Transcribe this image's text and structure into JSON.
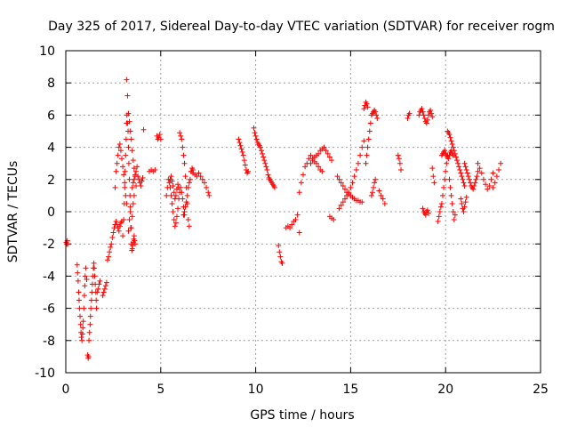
{
  "chart_data": {
    "type": "scatter",
    "title": "Day 325 of 2017, Sidereal Day-to-day VTEC variation (SDTVAR) for receiver rogm",
    "xlabel": "GPS time / hours",
    "ylabel": "SDTVAR / TECUs",
    "xlim": [
      0,
      25
    ],
    "ylim": [
      -10,
      10
    ],
    "xticks": [
      0,
      5,
      10,
      15,
      20,
      25
    ],
    "yticks": [
      -10,
      -8,
      -6,
      -4,
      -2,
      0,
      2,
      4,
      6,
      8,
      10
    ],
    "xtick_labels": [
      "0",
      "5",
      "10",
      "15",
      "20",
      "25"
    ],
    "ytick_labels": [
      "-10",
      "-8",
      "-6",
      "-4",
      "-2",
      "0",
      "2",
      "4",
      "6",
      "8",
      "10"
    ],
    "grid": true,
    "marker": "+",
    "marker_color": "#ff0000",
    "series": [
      {
        "name": "SDTVAR",
        "x": [
          0.02,
          0.05,
          0.08,
          0.1,
          0.6,
          0.62,
          0.65,
          0.68,
          0.7,
          0.72,
          0.75,
          0.78,
          0.8,
          0.82,
          0.85,
          0.88,
          0.9,
          0.92,
          0.95,
          0.98,
          1.0,
          1.02,
          1.05,
          1.1,
          1.15,
          1.18,
          1.2,
          1.22,
          1.25,
          1.28,
          1.3,
          1.32,
          1.35,
          1.38,
          1.4,
          1.42,
          1.45,
          1.48,
          1.5,
          1.52,
          1.55,
          1.58,
          1.6,
          1.62,
          1.65,
          1.7,
          1.75,
          1.8,
          1.95,
          2.0,
          2.05,
          2.1,
          2.15,
          2.2,
          2.25,
          2.3,
          2.35,
          2.4,
          2.45,
          2.5,
          2.55,
          2.6,
          2.65,
          2.7,
          2.75,
          2.8,
          2.85,
          2.9,
          2.95,
          2.6,
          2.65,
          2.7,
          2.75,
          2.8,
          2.85,
          2.9,
          2.95,
          3.0,
          3.05,
          3.1,
          3.15,
          3.2,
          3.0,
          3.05,
          3.08,
          3.1,
          3.12,
          3.15,
          3.18,
          3.2,
          3.22,
          3.25,
          3.28,
          3.3,
          3.32,
          3.35,
          3.38,
          3.4,
          3.42,
          3.45,
          3.48,
          3.5,
          3.52,
          3.55,
          3.58,
          3.6,
          3.62,
          3.65,
          3.2,
          3.25,
          3.3,
          3.35,
          3.4,
          3.45,
          3.5,
          3.55,
          3.6,
          3.65,
          3.7,
          3.5,
          3.55,
          3.6,
          3.65,
          3.7,
          3.75,
          3.8,
          3.85,
          3.9,
          3.95,
          4.0,
          4.05,
          4.1,
          3.3,
          3.35,
          3.4,
          3.45,
          3.5,
          3.55,
          3.6,
          4.4,
          4.5,
          4.6,
          4.7,
          4.8,
          4.85,
          4.9,
          4.95,
          5.0,
          5.3,
          5.35,
          5.4,
          5.45,
          5.5,
          5.55,
          5.6,
          5.65,
          5.7,
          5.75,
          5.8,
          5.85,
          5.9,
          5.95,
          6.0,
          6.05,
          6.1,
          6.15,
          6.2,
          6.25,
          5.5,
          5.55,
          5.6,
          5.65,
          5.7,
          5.75,
          5.8,
          5.85,
          5.9,
          5.95,
          6.0,
          6.05,
          6.1,
          6.15,
          6.2,
          6.25,
          6.3,
          6.35,
          6.4,
          6.45,
          6.5,
          6.2,
          6.25,
          6.3,
          6.35,
          6.4,
          6.45,
          6.5,
          6.55,
          6.6,
          6.65,
          6.7,
          6.6,
          6.7,
          6.8,
          6.9,
          7.0,
          7.1,
          7.2,
          7.3,
          7.4,
          7.5,
          7.55,
          9.1,
          9.15,
          9.2,
          9.25,
          9.3,
          9.35,
          9.4,
          9.45,
          9.5,
          9.55,
          9.6,
          9.9,
          9.95,
          10.0,
          10.05,
          10.1,
          10.15,
          10.2,
          10.25,
          10.3,
          10.35,
          10.4,
          10.45,
          10.5,
          10.55,
          10.6,
          10.65,
          10.7,
          10.75,
          10.8,
          10.85,
          10.9,
          10.95,
          11.0,
          11.2,
          11.25,
          11.3,
          11.35,
          11.4,
          11.6,
          11.7,
          11.8,
          11.9,
          12.0,
          12.1,
          12.2,
          12.3,
          12.3,
          12.4,
          12.5,
          12.6,
          12.7,
          12.8,
          12.9,
          13.0,
          13.1,
          13.2,
          13.3,
          13.4,
          13.5,
          13.6,
          13.7,
          13.8,
          13.9,
          14.0,
          12.9,
          13.0,
          13.1,
          13.2,
          13.3,
          13.4,
          13.5,
          13.9,
          14.0,
          14.1,
          14.3,
          14.4,
          14.5,
          14.6,
          14.7,
          14.8,
          14.9,
          15.0,
          15.1,
          15.2,
          15.3,
          15.4,
          15.5,
          15.6,
          14.4,
          14.5,
          14.6,
          14.7,
          14.8,
          14.9,
          15.0,
          15.1,
          15.2,
          15.3,
          15.4,
          15.5,
          15.6,
          15.7,
          15.7,
          15.75,
          15.8,
          15.85,
          15.9,
          15.8,
          15.85,
          15.9,
          15.95,
          16.0,
          16.05,
          16.1,
          16.15,
          16.2,
          16.25,
          16.3,
          16.35,
          16.4,
          16.1,
          16.15,
          16.2,
          16.25,
          16.3,
          16.5,
          16.6,
          16.7,
          16.8,
          17.5,
          17.55,
          17.6,
          17.65,
          18.0,
          18.05,
          18.1,
          18.6,
          18.65,
          18.7,
          18.75,
          18.8,
          18.85,
          18.9,
          18.95,
          19.0,
          19.05,
          19.1,
          19.15,
          19.2,
          19.25,
          19.3,
          18.8,
          18.85,
          18.9,
          18.95,
          19.0,
          19.05,
          19.1,
          19.3,
          19.35,
          19.4,
          19.6,
          19.65,
          19.7,
          19.75,
          19.8,
          19.85,
          19.9,
          19.95,
          20.0,
          20.05,
          20.1,
          19.8,
          19.85,
          19.9,
          19.95,
          20.0,
          20.05,
          20.1,
          20.15,
          20.2,
          20.25,
          20.3,
          20.35,
          20.4,
          20.1,
          20.15,
          20.2,
          20.25,
          20.3,
          20.35,
          20.4,
          20.45,
          20.5,
          20.55,
          20.6,
          20.65,
          20.7,
          20.75,
          20.8,
          20.85,
          20.9,
          20.95,
          21.0,
          20.2,
          20.25,
          20.3,
          20.35,
          20.4,
          20.45,
          20.5,
          20.8,
          20.85,
          20.9,
          20.95,
          21.0,
          21.05,
          21.1,
          21.0,
          21.05,
          21.1,
          21.15,
          21.2,
          21.25,
          21.3,
          21.35,
          21.4,
          21.45,
          21.5,
          21.55,
          21.6,
          21.65,
          21.7,
          21.7,
          21.8,
          21.9,
          22.0,
          22.1,
          22.2,
          22.3,
          22.4,
          22.5,
          22.5,
          22.6,
          22.7,
          22.8,
          22.9
        ],
        "y": [
          -1.9,
          -2.0,
          -1.8,
          -2.0,
          -3.3,
          -3.8,
          -4.3,
          -5.0,
          -5.5,
          -6.0,
          -6.5,
          -7.0,
          -7.5,
          -7.8,
          -8.0,
          -7.6,
          -7.2,
          -6.8,
          -6.0,
          -5.2,
          -4.6,
          -4.0,
          -3.5,
          -4.2,
          -8.9,
          -9.1,
          -9.0,
          -8.0,
          -7.5,
          -7.0,
          -6.5,
          -6.0,
          -5.5,
          -5.0,
          -4.5,
          -4.0,
          -3.5,
          -3.2,
          -3.5,
          -4.0,
          -4.5,
          -5.0,
          -5.5,
          -6.0,
          -5.0,
          -4.8,
          -4.5,
          -4.3,
          -5.2,
          -5.0,
          -4.8,
          -4.6,
          -4.4,
          -3.0,
          -2.8,
          -2.5,
          -2.2,
          -2.0,
          -1.6,
          -1.3,
          -1.0,
          -0.8,
          -0.6,
          -0.8,
          -1.0,
          -1.2,
          -0.9,
          -0.7,
          -0.6,
          1.5,
          2.5,
          3.0,
          3.5,
          4.0,
          4.2,
          3.8,
          3.3,
          2.8,
          2.3,
          1.8,
          1.0,
          0.5,
          -1.5,
          -0.5,
          0.5,
          1.5,
          2.5,
          3.5,
          4.5,
          5.5,
          6.0,
          5.5,
          5.0,
          4.0,
          3.0,
          2.0,
          1.0,
          0.0,
          -1.0,
          -2.0,
          -2.4,
          -2.3,
          -2.1,
          -1.9,
          -1.7,
          -1.5,
          -1.8,
          -2.0,
          8.2,
          7.2,
          6.1,
          5.6,
          5.0,
          4.5,
          3.8,
          3.2,
          2.7,
          2.2,
          1.6,
          1.5,
          1.8,
          2.0,
          2.3,
          2.5,
          2.8,
          2.2,
          2.0,
          1.8,
          1.6,
          1.9,
          2.1,
          5.1,
          -1.2,
          -0.5,
          0.3,
          -1.0,
          -0.3,
          0.5,
          1.0,
          2.5,
          2.6,
          2.5,
          2.6,
          4.7,
          4.5,
          4.6,
          4.8,
          4.5,
          1.0,
          1.5,
          2.0,
          1.8,
          1.5,
          1.0,
          0.5,
          0.0,
          -0.5,
          -0.9,
          -0.7,
          -0.3,
          0.2,
          0.8,
          1.2,
          1.5,
          1.2,
          0.8,
          0.3,
          -0.2,
          2.0,
          2.2,
          1.9,
          1.6,
          1.2,
          0.8,
          1.0,
          1.4,
          1.7,
          1.5,
          4.9,
          4.7,
          4.5,
          4.0,
          3.5,
          3.0,
          2.2,
          1.5,
          0.5,
          -0.5,
          -0.9,
          -0.2,
          0.0,
          0.3,
          0.6,
          1.0,
          1.5,
          1.8,
          2.0,
          2.5,
          2.7,
          2.6,
          2.5,
          2.4,
          2.3,
          2.2,
          2.4,
          2.2,
          2.0,
          1.8,
          1.5,
          1.2,
          1.0,
          4.5,
          4.3,
          4.1,
          3.9,
          3.7,
          3.5,
          3.2,
          2.9,
          2.6,
          2.4,
          2.5,
          5.2,
          4.9,
          4.7,
          4.5,
          4.3,
          4.2,
          4.1,
          4.0,
          3.8,
          3.6,
          3.4,
          3.2,
          3.0,
          2.8,
          2.6,
          2.3,
          2.1,
          2.0,
          1.9,
          1.8,
          1.7,
          1.6,
          1.5,
          -2.1,
          -2.5,
          -2.8,
          -3.1,
          -3.2,
          -1.0,
          -0.9,
          -1.0,
          -0.8,
          -0.6,
          -0.5,
          -0.2,
          -1.3,
          1.2,
          1.8,
          2.3,
          2.8,
          3.0,
          3.3,
          3.0,
          3.2,
          3.4,
          3.5,
          3.6,
          3.8,
          3.9,
          4.0,
          3.8,
          3.6,
          3.4,
          3.2,
          3.5,
          3.3,
          3.1,
          3.0,
          2.8,
          2.6,
          2.5,
          -0.3,
          -0.4,
          -0.5,
          2.2,
          2.0,
          1.8,
          1.6,
          1.4,
          1.2,
          1.1,
          1.0,
          0.9,
          0.8,
          0.7,
          0.7,
          0.6,
          0.6,
          0.2,
          0.4,
          0.6,
          0.8,
          1.0,
          1.2,
          1.5,
          1.8,
          2.2,
          2.6,
          3.0,
          3.5,
          4.0,
          4.4,
          6.4,
          6.6,
          6.8,
          6.7,
          6.5,
          3.0,
          3.5,
          4.0,
          4.5,
          5.0,
          5.5,
          6.0,
          6.1,
          6.2,
          6.3,
          6.2,
          6.0,
          5.8,
          1.0,
          1.2,
          1.5,
          1.8,
          2.0,
          1.3,
          1.0,
          0.8,
          0.5,
          3.5,
          3.3,
          3.0,
          2.6,
          5.8,
          6.0,
          6.1,
          6.0,
          6.2,
          6.3,
          6.4,
          6.2,
          6.0,
          5.8,
          5.6,
          5.5,
          5.7,
          6.0,
          6.2,
          6.3,
          6.1,
          5.9,
          0.2,
          0.0,
          -0.1,
          -0.2,
          0.0,
          0.1,
          -0.1,
          2.7,
          2.2,
          1.8,
          -0.6,
          -0.3,
          0.0,
          0.3,
          0.5,
          1.0,
          1.5,
          2.0,
          2.5,
          3.0,
          3.5,
          3.5,
          3.6,
          3.7,
          3.8,
          3.6,
          3.5,
          3.4,
          3.3,
          3.5,
          3.7,
          3.8,
          3.6,
          3.5,
          5.0,
          4.9,
          4.8,
          4.6,
          4.4,
          4.2,
          4.0,
          3.8,
          3.6,
          3.4,
          3.2,
          3.0,
          2.8,
          2.6,
          2.4,
          2.2,
          2.0,
          1.8,
          1.6,
          2.0,
          1.5,
          1.0,
          0.5,
          0.0,
          -0.5,
          -0.2,
          0.8,
          0.5,
          0.2,
          0.0,
          0.3,
          0.6,
          0.9,
          3.0,
          2.8,
          2.6,
          2.4,
          2.2,
          2.0,
          1.8,
          1.6,
          1.5,
          1.4,
          1.6,
          1.8,
          2.0,
          2.2,
          2.5,
          3.0,
          2.7,
          2.4,
          2.0,
          1.7,
          1.4,
          1.6,
          2.0,
          2.4,
          1.5,
          1.8,
          2.2,
          2.6,
          3.0
        ]
      }
    ]
  }
}
